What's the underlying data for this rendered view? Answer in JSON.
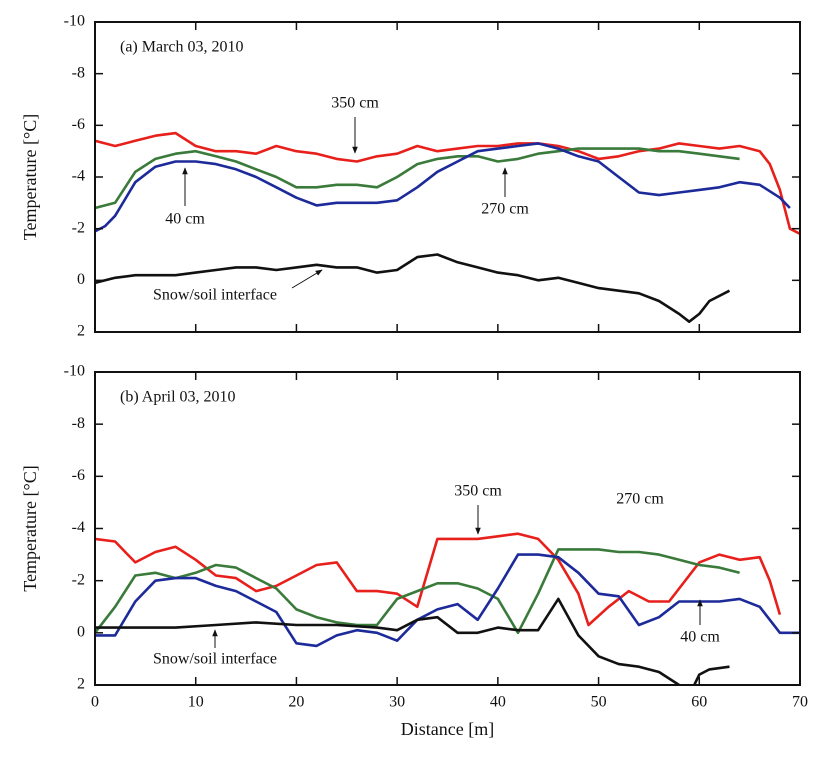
{
  "chart_data": [
    {
      "type": "line",
      "title": "(a) March 03, 2010",
      "y_label": "Temperature [°C]",
      "xlim": [
        0,
        70
      ],
      "ylim": [
        2,
        -10
      ],
      "yticks": [
        -10,
        -8,
        -6,
        -4,
        -2,
        0,
        2
      ],
      "series": [
        {
          "name": "350 cm",
          "color": "#e8201c",
          "x": [
            0,
            2,
            4,
            6,
            8,
            10,
            12,
            14,
            16,
            18,
            20,
            22,
            24,
            26,
            28,
            30,
            32,
            34,
            36,
            38,
            40,
            42,
            44,
            46,
            48,
            50,
            52,
            54,
            56,
            58,
            60,
            62,
            64,
            66,
            67,
            68,
            69,
            70
          ],
          "values": [
            -5.4,
            -5.2,
            -5.4,
            -5.6,
            -5.7,
            -5.2,
            -5.0,
            -5.0,
            -4.9,
            -5.2,
            -5.0,
            -4.9,
            -4.7,
            -4.6,
            -4.8,
            -4.9,
            -5.2,
            -5.0,
            -5.1,
            -5.2,
            -5.2,
            -5.3,
            -5.3,
            -5.2,
            -5.0,
            -4.7,
            -4.8,
            -5.0,
            -5.1,
            -5.3,
            -5.2,
            -5.1,
            -5.2,
            -5.0,
            -4.5,
            -3.5,
            -2.0,
            -1.8
          ]
        },
        {
          "name": "270 cm",
          "color": "#3a7a3a",
          "x": [
            0,
            2,
            4,
            6,
            8,
            10,
            12,
            14,
            16,
            18,
            20,
            22,
            24,
            26,
            28,
            30,
            32,
            34,
            36,
            38,
            40,
            42,
            44,
            46,
            48,
            50,
            52,
            54,
            56,
            58,
            60,
            62,
            64
          ],
          "values": [
            -2.8,
            -3.0,
            -4.2,
            -4.7,
            -4.9,
            -5.0,
            -4.8,
            -4.6,
            -4.3,
            -4.0,
            -3.6,
            -3.6,
            -3.7,
            -3.7,
            -3.6,
            -4.0,
            -4.5,
            -4.7,
            -4.8,
            -4.8,
            -4.6,
            -4.7,
            -4.9,
            -5.0,
            -5.1,
            -5.1,
            -5.1,
            -5.1,
            -5.0,
            -5.0,
            -4.9,
            -4.8,
            -4.7
          ]
        },
        {
          "name": "40 cm",
          "color": "#1c2a9a",
          "x": [
            0,
            1,
            2,
            4,
            6,
            8,
            10,
            12,
            14,
            16,
            18,
            20,
            22,
            24,
            26,
            28,
            30,
            32,
            34,
            36,
            38,
            40,
            42,
            44,
            46,
            48,
            50,
            52,
            54,
            56,
            58,
            60,
            62,
            64,
            66,
            68,
            69
          ],
          "values": [
            -1.9,
            -2.1,
            -2.5,
            -3.8,
            -4.4,
            -4.6,
            -4.6,
            -4.5,
            -4.3,
            -4.0,
            -3.6,
            -3.2,
            -2.9,
            -3.0,
            -3.0,
            -3.0,
            -3.1,
            -3.6,
            -4.2,
            -4.6,
            -5.0,
            -5.1,
            -5.2,
            -5.3,
            -5.1,
            -4.8,
            -4.6,
            -4.0,
            -3.4,
            -3.3,
            -3.4,
            -3.5,
            -3.6,
            -3.8,
            -3.7,
            -3.2,
            -2.8
          ]
        },
        {
          "name": "Snow/soil interface",
          "color": "#111111",
          "x": [
            0,
            2,
            4,
            6,
            8,
            10,
            12,
            14,
            16,
            18,
            20,
            22,
            24,
            26,
            28,
            30,
            32,
            34,
            36,
            38,
            40,
            42,
            44,
            46,
            48,
            50,
            52,
            54,
            56,
            58,
            59,
            60,
            61,
            63
          ],
          "values": [
            0.1,
            -0.1,
            -0.2,
            -0.2,
            -0.2,
            -0.3,
            -0.4,
            -0.5,
            -0.5,
            -0.4,
            -0.5,
            -0.6,
            -0.5,
            -0.5,
            -0.3,
            -0.4,
            -0.9,
            -1.0,
            -0.7,
            -0.5,
            -0.3,
            -0.2,
            0.0,
            -0.1,
            0.1,
            0.3,
            0.4,
            0.5,
            0.8,
            1.3,
            1.6,
            1.3,
            0.8,
            0.4
          ]
        }
      ]
    },
    {
      "type": "line",
      "title": "(b) April 03, 2010",
      "y_label": "Temperature [°C]",
      "x_label": "Distance [m]",
      "xlim": [
        0,
        70
      ],
      "xticks": [
        0,
        10,
        20,
        30,
        40,
        50,
        60,
        70
      ],
      "ylim": [
        2,
        -10
      ],
      "yticks": [
        -10,
        -8,
        -6,
        -4,
        -2,
        0,
        2
      ],
      "series": [
        {
          "name": "350 cm",
          "color": "#e8201c",
          "x": [
            0,
            2,
            4,
            6,
            8,
            10,
            12,
            14,
            16,
            18,
            20,
            22,
            24,
            26,
            28,
            30,
            32,
            34,
            36,
            38,
            40,
            42,
            44,
            46,
            48,
            49,
            51,
            53,
            55,
            57,
            60,
            62,
            64,
            66,
            67,
            68
          ],
          "values": [
            -3.6,
            -3.5,
            -2.7,
            -3.1,
            -3.3,
            -2.8,
            -2.2,
            -2.1,
            -1.6,
            -1.8,
            -2.2,
            -2.6,
            -2.7,
            -1.6,
            -1.6,
            -1.5,
            -1.0,
            -3.6,
            -3.6,
            -3.6,
            -3.7,
            -3.8,
            -3.6,
            -2.8,
            -1.5,
            -0.3,
            -1.0,
            -1.6,
            -1.2,
            -1.2,
            -2.7,
            -3.0,
            -2.8,
            -2.9,
            -2.0,
            -0.7
          ]
        },
        {
          "name": "270 cm",
          "color": "#3a7a3a",
          "x": [
            0,
            2,
            4,
            6,
            8,
            10,
            12,
            14,
            16,
            18,
            20,
            22,
            24,
            26,
            28,
            30,
            32,
            34,
            36,
            38,
            40,
            42,
            44,
            46,
            48,
            50,
            52,
            54,
            56,
            58,
            60,
            62,
            64
          ],
          "values": [
            0,
            -1.0,
            -2.2,
            -2.3,
            -2.1,
            -2.3,
            -2.6,
            -2.5,
            -2.1,
            -1.7,
            -0.9,
            -0.6,
            -0.4,
            -0.3,
            -0.3,
            -1.3,
            -1.6,
            -1.9,
            -1.9,
            -1.7,
            -1.3,
            0.0,
            -1.5,
            -3.2,
            -3.2,
            -3.2,
            -3.1,
            -3.1,
            -3.0,
            -2.8,
            -2.6,
            -2.5,
            -2.3
          ]
        },
        {
          "name": "40 cm",
          "color": "#1c2a9a",
          "x": [
            0,
            2,
            4,
            6,
            8,
            10,
            12,
            14,
            16,
            18,
            20,
            22,
            24,
            26,
            28,
            30,
            32,
            34,
            36,
            38,
            40,
            42,
            44,
            46,
            48,
            50,
            52,
            54,
            56,
            58,
            60,
            62,
            64,
            66,
            68,
            70
          ],
          "values": [
            0.1,
            0.1,
            -1.2,
            -2.0,
            -2.1,
            -2.1,
            -1.8,
            -1.6,
            -1.2,
            -0.8,
            0.4,
            0.5,
            0.1,
            -0.1,
            0,
            0.3,
            -0.5,
            -0.9,
            -1.1,
            -0.5,
            -1.7,
            -3.0,
            -3.0,
            -2.9,
            -2.3,
            -1.5,
            -1.4,
            -0.3,
            -0.6,
            -1.2,
            -1.2,
            -1.2,
            -1.3,
            -1.0,
            0.0,
            0.0
          ]
        },
        {
          "name": "Snow/soil interface",
          "color": "#111111",
          "x": [
            0,
            4,
            8,
            12,
            16,
            20,
            24,
            28,
            30,
            32,
            34,
            36,
            38,
            40,
            42,
            44,
            46,
            48,
            50,
            52,
            54,
            56,
            58,
            59,
            60,
            61,
            63
          ],
          "values": [
            -0.2,
            -0.2,
            -0.2,
            -0.3,
            -0.4,
            -0.3,
            -0.3,
            -0.2,
            -0.1,
            -0.5,
            -0.6,
            0.0,
            0.0,
            -0.2,
            -0.1,
            -0.1,
            -1.3,
            0.1,
            0.9,
            1.2,
            1.3,
            1.5,
            2.0,
            2.4,
            1.6,
            1.4,
            1.3
          ]
        }
      ]
    }
  ]
}
